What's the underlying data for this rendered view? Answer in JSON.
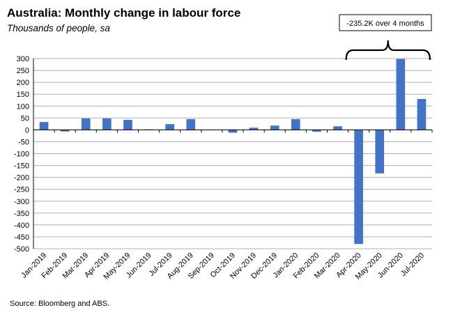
{
  "chart_data": {
    "type": "bar",
    "title": "Australia: Monthly change in labour force",
    "subtitle": "Thousands of people, sa",
    "categories": [
      "Jan-2019",
      "Feb-2019",
      "Mar-2019",
      "Apr-2019",
      "May-2019",
      "Jun-2019",
      "Jul-2019",
      "Aug-2019",
      "Sep-2019",
      "Oct-2019",
      "Nov-2019",
      "Dec-2019",
      "Jan-2020",
      "Feb-2020",
      "Mar-2020",
      "Apr-2020",
      "May-2020",
      "Jun-2020",
      "Jul-2020"
    ],
    "values": [
      33,
      -7,
      48,
      48,
      42,
      2,
      24,
      45,
      1,
      -12,
      9,
      18,
      45,
      -8,
      15,
      -480,
      -183,
      298,
      130
    ],
    "ylim": [
      -500,
      300
    ],
    "yticks": [
      300,
      250,
      200,
      150,
      100,
      50,
      0,
      -50,
      -100,
      -150,
      -200,
      -250,
      -300,
      -350,
      -400,
      -450,
      -500
    ],
    "grid": true,
    "bar_color": "#4472C4",
    "annotation": {
      "text": "-235.2K over 4 months",
      "from": "Apr-2020",
      "to": "Jul-2020"
    }
  },
  "source": "Source: Bloomberg and ABS."
}
